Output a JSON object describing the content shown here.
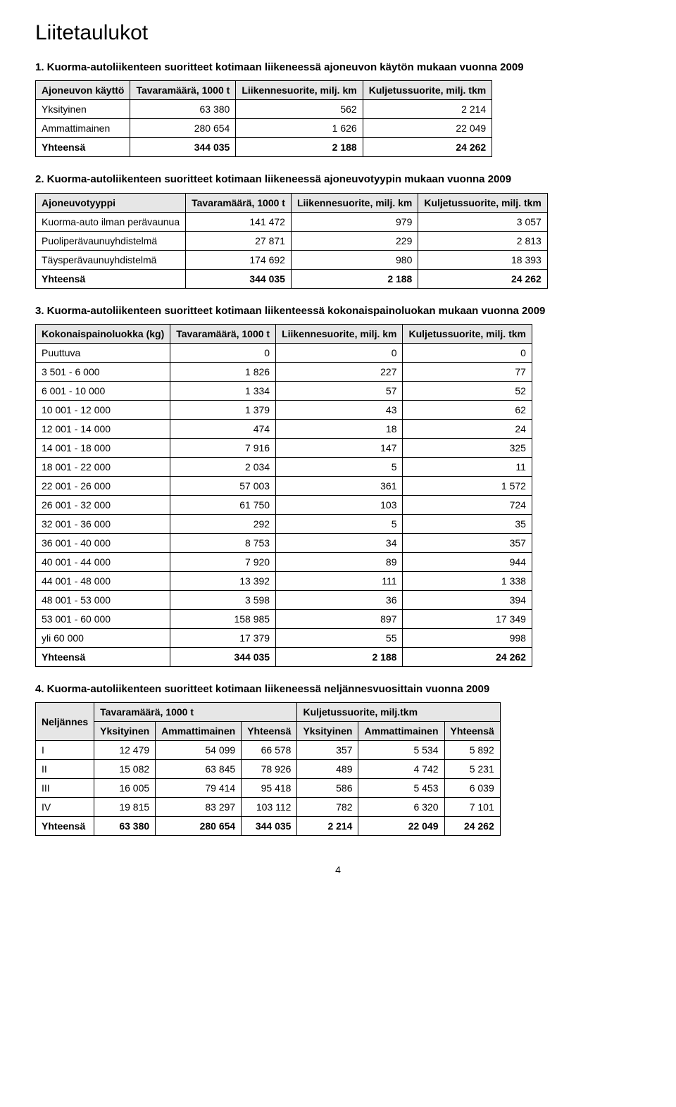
{
  "page_title": "Liitetaulukot",
  "page_number": "4",
  "table1": {
    "heading": "1. Kuorma-autoliikenteen suoritteet kotimaan liikeneessä ajoneuvon käytön mukaan vuonna 2009",
    "headers": [
      "Ajoneuvon käyttö",
      "Tavaramäärä, 1000 t",
      "Liikennesuorite, milj. km",
      "Kuljetussuorite, milj. tkm"
    ],
    "rows": [
      {
        "label": "Yksityinen",
        "c1": "63 380",
        "c2": "562",
        "c3": "2 214"
      },
      {
        "label": "Ammattimainen",
        "c1": "280 654",
        "c2": "1 626",
        "c3": "22 049"
      },
      {
        "label": "Yhteensä",
        "c1": "344 035",
        "c2": "2 188",
        "c3": "24 262",
        "bold": true
      }
    ]
  },
  "table2": {
    "heading": "2. Kuorma-autoliikenteen suoritteet kotimaan liikeneessä ajoneuvotyypin mukaan vuonna 2009",
    "headers": [
      "Ajoneuvotyyppi",
      "Tavaramäärä, 1000 t",
      "Liikennesuorite, milj. km",
      "Kuljetussuorite, milj. tkm"
    ],
    "rows": [
      {
        "label": "Kuorma-auto ilman perävaunua",
        "c1": "141 472",
        "c2": "979",
        "c3": "3 057"
      },
      {
        "label": "Puoliperävaunuyhdistelmä",
        "c1": "27 871",
        "c2": "229",
        "c3": "2 813"
      },
      {
        "label": "Täysperävaunuyhdistelmä",
        "c1": "174 692",
        "c2": "980",
        "c3": "18 393"
      },
      {
        "label": "Yhteensä",
        "c1": "344 035",
        "c2": "2 188",
        "c3": "24 262",
        "bold": true
      }
    ]
  },
  "table3": {
    "heading": "3. Kuorma-autoliikenteen suoritteet kotimaan liikenteessä kokonaispainoluokan mukaan vuonna 2009",
    "headers": [
      "Kokonaispainoluokka (kg)",
      "Tavaramäärä, 1000 t",
      "Liikennesuorite, milj. km",
      "Kuljetussuorite, milj. tkm"
    ],
    "rows": [
      {
        "label": "Puuttuva",
        "c1": "0",
        "c2": "0",
        "c3": "0"
      },
      {
        "label": "3 501 - 6 000",
        "c1": "1 826",
        "c2": "227",
        "c3": "77"
      },
      {
        "label": "6 001 - 10 000",
        "c1": "1 334",
        "c2": "57",
        "c3": "52"
      },
      {
        "label": "10 001 - 12 000",
        "c1": "1 379",
        "c2": "43",
        "c3": "62"
      },
      {
        "label": "12 001 - 14 000",
        "c1": "474",
        "c2": "18",
        "c3": "24"
      },
      {
        "label": "14 001 - 18 000",
        "c1": "7 916",
        "c2": "147",
        "c3": "325"
      },
      {
        "label": "18 001 - 22 000",
        "c1": "2 034",
        "c2": "5",
        "c3": "11"
      },
      {
        "label": "22 001 - 26 000",
        "c1": "57 003",
        "c2": "361",
        "c3": "1 572"
      },
      {
        "label": "26 001 - 32 000",
        "c1": "61 750",
        "c2": "103",
        "c3": "724"
      },
      {
        "label": "32 001 - 36 000",
        "c1": "292",
        "c2": "5",
        "c3": "35"
      },
      {
        "label": "36 001 - 40 000",
        "c1": "8 753",
        "c2": "34",
        "c3": "357"
      },
      {
        "label": "40 001 - 44 000",
        "c1": "7 920",
        "c2": "89",
        "c3": "944"
      },
      {
        "label": "44 001 - 48 000",
        "c1": "13 392",
        "c2": "111",
        "c3": "1 338"
      },
      {
        "label": "48 001 - 53 000",
        "c1": "3 598",
        "c2": "36",
        "c3": "394"
      },
      {
        "label": "53 001 - 60 000",
        "c1": "158 985",
        "c2": "897",
        "c3": "17 349"
      },
      {
        "label": "yli 60 000",
        "c1": "17 379",
        "c2": "55",
        "c3": "998"
      },
      {
        "label": "Yhteensä",
        "c1": "344 035",
        "c2": "2 188",
        "c3": "24 262",
        "bold": true
      }
    ]
  },
  "table4": {
    "heading": "4. Kuorma-autoliikenteen suoritteet kotimaan liikeneessä neljännesvuosittain vuonna 2009",
    "top_headers": [
      "Neljännes",
      "Tavaramäärä, 1000 t",
      "Kuljetussuorite, milj.tkm"
    ],
    "sub_headers": [
      "Yksityinen",
      "Ammattimainen",
      "Yhteensä",
      "Yksityinen",
      "Ammattimainen",
      "Yhteensä"
    ],
    "rows": [
      {
        "label": "I",
        "c1": "12 479",
        "c2": "54 099",
        "c3": "66 578",
        "c4": "357",
        "c5": "5 534",
        "c6": "5 892"
      },
      {
        "label": "II",
        "c1": "15 082",
        "c2": "63 845",
        "c3": "78 926",
        "c4": "489",
        "c5": "4 742",
        "c6": "5 231"
      },
      {
        "label": "III",
        "c1": "16 005",
        "c2": "79 414",
        "c3": "95 418",
        "c4": "586",
        "c5": "5 453",
        "c6": "6 039"
      },
      {
        "label": "IV",
        "c1": "19 815",
        "c2": "83 297",
        "c3": "103 112",
        "c4": "782",
        "c5": "6 320",
        "c6": "7 101"
      },
      {
        "label": "Yhteensä",
        "c1": "63 380",
        "c2": "280 654",
        "c3": "344 035",
        "c4": "2 214",
        "c5": "22 049",
        "c6": "24 262",
        "bold": true
      }
    ]
  }
}
